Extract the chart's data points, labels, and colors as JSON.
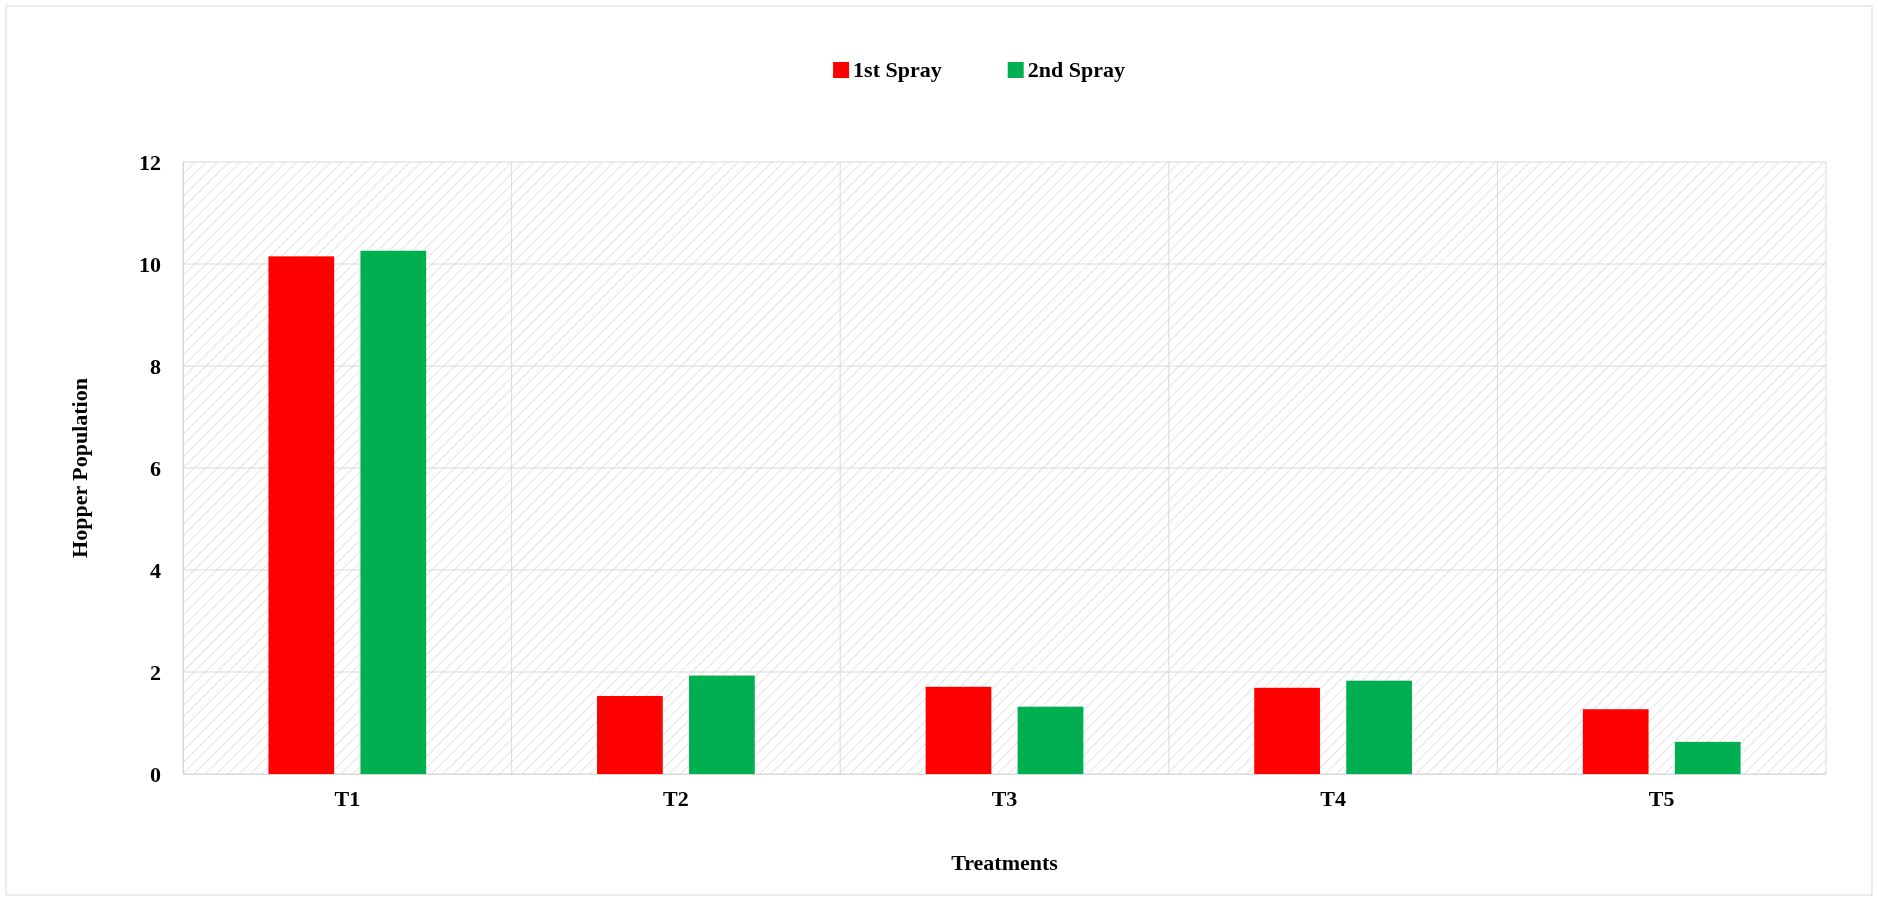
{
  "chart_data": {
    "type": "bar",
    "xlabel": "Treatments",
    "ylabel": "Hopper Population",
    "categories": [
      "T1",
      "T2",
      "T3",
      "T4",
      "T5"
    ],
    "series": [
      {
        "name": "1st Spray",
        "color": "#ff0000",
        "values": [
          10.15,
          1.53,
          1.71,
          1.69,
          1.27
        ]
      },
      {
        "name": "2nd Spray",
        "color": "#00b050",
        "values": [
          10.26,
          1.93,
          1.32,
          1.83,
          0.63
        ]
      }
    ],
    "ylim": [
      0,
      12
    ],
    "yticks": [
      0,
      2,
      4,
      6,
      8,
      10,
      12
    ],
    "grid": true,
    "legend": "top"
  }
}
